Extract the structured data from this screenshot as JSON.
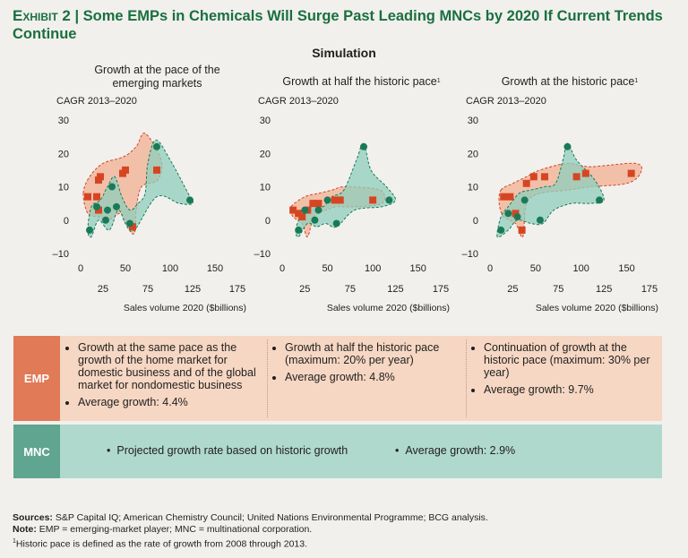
{
  "title": {
    "label": "Exhibit 2",
    "separator": "|",
    "text": "Some EMPs in Chemicals Will Surge Past Leading MNCs by 2020 If Current Trends Continue"
  },
  "simulation_heading": "Simulation",
  "colors": {
    "emp": "#d64522",
    "emp_area": "#f2b79c",
    "mnc": "#1a7a57",
    "mnc_area": "#8fcfbd",
    "title": "#1a6f3f"
  },
  "chart_data": [
    {
      "type": "scatter",
      "title": "Growth at the pace of the emerging markets",
      "ylabel": "CAGR 2013–2020",
      "xlabel": "Sales volume 2020 ($billions)",
      "xlim": [
        0,
        175
      ],
      "ylim": [
        -10,
        30
      ],
      "xticks": [
        0,
        25,
        50,
        75,
        100,
        125,
        150,
        175
      ],
      "xtick_labels": [
        "0",
        "25",
        "50",
        "75",
        "100",
        "125",
        "150",
        "175"
      ],
      "yticks": [
        -10,
        0,
        10,
        20,
        30
      ],
      "ytick_labels": [
        "–10",
        "0",
        "10",
        "20",
        "30"
      ],
      "series": [
        {
          "name": "EMP",
          "points": [
            [
              8,
              7
            ],
            [
              18,
              7
            ],
            [
              20,
              12
            ],
            [
              22,
              13
            ],
            [
              20,
              3
            ],
            [
              47,
              14
            ],
            [
              50,
              15
            ],
            [
              58,
              -2
            ],
            [
              85,
              15
            ]
          ]
        },
        {
          "name": "MNC",
          "points": [
            [
              10,
              -3
            ],
            [
              18,
              4
            ],
            [
              28,
              0
            ],
            [
              35,
              10
            ],
            [
              30,
              3
            ],
            [
              40,
              4
            ],
            [
              55,
              -1
            ],
            [
              85,
              22
            ],
            [
              122,
              6
            ]
          ]
        }
      ]
    },
    {
      "type": "scatter",
      "title": "Growth at half the historic pace",
      "title_note": "1",
      "ylabel": "CAGR 2013–2020",
      "xlabel": "Sales volume 2020 ($billions)",
      "xlim": [
        0,
        175
      ],
      "ylim": [
        -10,
        30
      ],
      "xticks": [
        0,
        25,
        50,
        75,
        100,
        125,
        150,
        175
      ],
      "xtick_labels": [
        "0",
        "25",
        "50",
        "75",
        "100",
        "125",
        "150",
        "175"
      ],
      "yticks": [
        -10,
        0,
        10,
        20,
        30
      ],
      "ytick_labels": [
        "–10",
        "0",
        "10",
        "20",
        "30"
      ],
      "series": [
        {
          "name": "EMP",
          "points": [
            [
              12,
              3
            ],
            [
              18,
              2
            ],
            [
              22,
              1
            ],
            [
              28,
              3
            ],
            [
              34,
              5
            ],
            [
              40,
              5
            ],
            [
              58,
              6
            ],
            [
              64,
              6
            ],
            [
              100,
              6
            ]
          ]
        },
        {
          "name": "MNC",
          "points": [
            [
              18,
              -3
            ],
            [
              25,
              3
            ],
            [
              36,
              0
            ],
            [
              40,
              3
            ],
            [
              50,
              6
            ],
            [
              60,
              -1
            ],
            [
              90,
              22
            ],
            [
              118,
              6
            ]
          ]
        }
      ]
    },
    {
      "type": "scatter",
      "title": "Growth at the historic pace",
      "title_note": "1",
      "ylabel": "CAGR 2013–2020",
      "xlabel": "Sales volume 2020 ($billions)",
      "xlim": [
        0,
        175
      ],
      "ylim": [
        -10,
        30
      ],
      "xticks": [
        0,
        25,
        50,
        75,
        100,
        125,
        150,
        175
      ],
      "xtick_labels": [
        "0",
        "25",
        "50",
        "75",
        "100",
        "125",
        "150",
        "175"
      ],
      "yticks": [
        -10,
        0,
        10,
        20,
        30
      ],
      "ytick_labels": [
        "–10",
        "0",
        "10",
        "20",
        "30"
      ],
      "series": [
        {
          "name": "EMP",
          "points": [
            [
              15,
              7
            ],
            [
              22,
              7
            ],
            [
              28,
              2
            ],
            [
              40,
              11
            ],
            [
              48,
              13
            ],
            [
              35,
              -3
            ],
            [
              60,
              13
            ],
            [
              95,
              13
            ],
            [
              105,
              14
            ],
            [
              155,
              14
            ]
          ]
        },
        {
          "name": "MNC",
          "points": [
            [
              12,
              -3
            ],
            [
              20,
              2
            ],
            [
              30,
              1
            ],
            [
              38,
              6
            ],
            [
              55,
              0
            ],
            [
              85,
              22
            ],
            [
              120,
              6
            ]
          ]
        }
      ]
    }
  ],
  "table": {
    "emp": {
      "label": "EMP",
      "col1": {
        "bullet1": "Growth at the same pace as the growth of the home market for domestic business and of the global market for nondomestic business",
        "bullet2": "Average growth: 4.4%"
      },
      "col2": {
        "bullet1": "Growth at half the historic pace (maximum: 20% per year)",
        "bullet2": "Average growth: 4.8%"
      },
      "col3": {
        "bullet1": "Continuation of growth at the historic pace (maximum: 30% per year)",
        "bullet2": "Average growth: 9.7%"
      }
    },
    "mnc": {
      "label": "MNC",
      "bullet1": "Projected growth rate based on historic growth",
      "bullet2": "Average growth: 2.9%"
    }
  },
  "footer": {
    "sources_label": "Sources:",
    "sources_text": "S&P Capital IQ; American Chemistry Council; United Nations Environmental Programme; BCG analysis.",
    "note_label": "Note:",
    "note_text": "EMP = emerging-market player; MNC = multinational corporation.",
    "footnote_mark": "1",
    "footnote_text": "Historic pace is defined as the rate of growth from 2008 through 2013."
  }
}
